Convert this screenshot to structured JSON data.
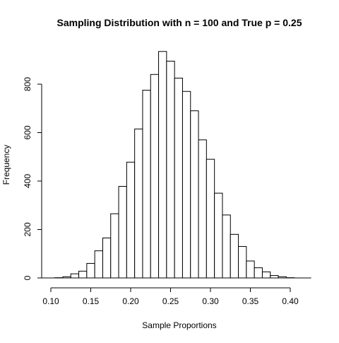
{
  "chart_data": {
    "type": "bar",
    "title": "Sampling Distribution with n = 100 and True p = 0.25",
    "xlabel": "Sample Proportions",
    "ylabel": "Frequency",
    "xlim": [
      0.1,
      0.42
    ],
    "ylim": [
      0,
      940
    ],
    "xticks": [
      "0.10",
      "0.15",
      "0.20",
      "0.25",
      "0.30",
      "0.35",
      "0.40"
    ],
    "yticks": [
      "0",
      "200",
      "400",
      "600",
      "800"
    ],
    "grid": false,
    "bin_width": 0.01,
    "bins": [
      {
        "x0": 0.085,
        "x1": 0.095,
        "count": 0
      },
      {
        "x0": 0.095,
        "x1": 0.105,
        "count": 0
      },
      {
        "x0": 0.105,
        "x1": 0.115,
        "count": 1
      },
      {
        "x0": 0.115,
        "x1": 0.125,
        "count": 5
      },
      {
        "x0": 0.125,
        "x1": 0.135,
        "count": 17
      },
      {
        "x0": 0.135,
        "x1": 0.145,
        "count": 28
      },
      {
        "x0": 0.145,
        "x1": 0.155,
        "count": 60
      },
      {
        "x0": 0.155,
        "x1": 0.165,
        "count": 112
      },
      {
        "x0": 0.165,
        "x1": 0.175,
        "count": 165
      },
      {
        "x0": 0.175,
        "x1": 0.185,
        "count": 265
      },
      {
        "x0": 0.185,
        "x1": 0.195,
        "count": 378
      },
      {
        "x0": 0.195,
        "x1": 0.205,
        "count": 478
      },
      {
        "x0": 0.205,
        "x1": 0.215,
        "count": 615
      },
      {
        "x0": 0.215,
        "x1": 0.225,
        "count": 775
      },
      {
        "x0": 0.225,
        "x1": 0.235,
        "count": 840
      },
      {
        "x0": 0.235,
        "x1": 0.245,
        "count": 935
      },
      {
        "x0": 0.245,
        "x1": 0.255,
        "count": 895
      },
      {
        "x0": 0.255,
        "x1": 0.265,
        "count": 825
      },
      {
        "x0": 0.265,
        "x1": 0.275,
        "count": 770
      },
      {
        "x0": 0.275,
        "x1": 0.285,
        "count": 690
      },
      {
        "x0": 0.285,
        "x1": 0.295,
        "count": 570
      },
      {
        "x0": 0.295,
        "x1": 0.305,
        "count": 490
      },
      {
        "x0": 0.305,
        "x1": 0.315,
        "count": 350
      },
      {
        "x0": 0.315,
        "x1": 0.325,
        "count": 260
      },
      {
        "x0": 0.325,
        "x1": 0.335,
        "count": 180
      },
      {
        "x0": 0.335,
        "x1": 0.345,
        "count": 130
      },
      {
        "x0": 0.345,
        "x1": 0.355,
        "count": 70
      },
      {
        "x0": 0.355,
        "x1": 0.365,
        "count": 42
      },
      {
        "x0": 0.365,
        "x1": 0.375,
        "count": 25
      },
      {
        "x0": 0.375,
        "x1": 0.385,
        "count": 10
      },
      {
        "x0": 0.385,
        "x1": 0.395,
        "count": 5
      },
      {
        "x0": 0.395,
        "x1": 0.405,
        "count": 1
      }
    ],
    "colors": {
      "bar_fill": "#ffffff",
      "bar_stroke": "#000000",
      "axis": "#000000"
    }
  }
}
